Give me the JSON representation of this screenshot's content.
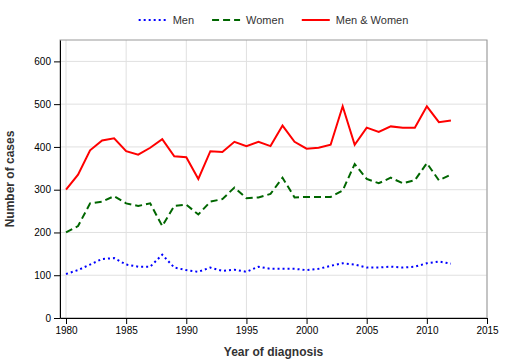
{
  "chart_data": {
    "type": "line",
    "x": [
      1980,
      1981,
      1982,
      1983,
      1984,
      1985,
      1986,
      1987,
      1988,
      1989,
      1990,
      1991,
      1992,
      1993,
      1994,
      1995,
      1996,
      1997,
      1998,
      1999,
      2000,
      2001,
      2002,
      2003,
      2004,
      2005,
      2006,
      2007,
      2008,
      2009,
      2010,
      2011,
      2012
    ],
    "series": [
      {
        "name": "Men",
        "color": "#0000ff",
        "line_style": "dotted",
        "values": [
          103,
          112,
          125,
          138,
          140,
          125,
          120,
          120,
          148,
          118,
          112,
          108,
          118,
          110,
          113,
          108,
          120,
          115,
          115,
          115,
          112,
          115,
          122,
          128,
          125,
          118,
          118,
          120,
          118,
          120,
          128,
          132,
          127
        ]
      },
      {
        "name": "Women",
        "color": "#006600",
        "line_style": "dashed",
        "values": [
          200,
          215,
          268,
          272,
          285,
          268,
          262,
          268,
          215,
          262,
          265,
          242,
          272,
          278,
          305,
          280,
          282,
          290,
          328,
          282,
          283,
          283,
          283,
          298,
          360,
          325,
          315,
          328,
          315,
          322,
          362,
          322,
          335
        ]
      },
      {
        "name": "Men & Women",
        "color": "#ff0000",
        "line_style": "solid",
        "values": [
          300,
          335,
          392,
          415,
          420,
          390,
          382,
          398,
          418,
          378,
          376,
          325,
          390,
          388,
          412,
          402,
          412,
          402,
          450,
          412,
          396,
          398,
          405,
          495,
          405,
          445,
          435,
          448,
          445,
          445,
          495,
          458,
          462
        ]
      }
    ],
    "xlabel": "Year of diagnosis",
    "ylabel": "Number of cases",
    "xlim": [
      1979.5,
      2015
    ],
    "ylim": [
      0,
      650
    ],
    "xticks": [
      1980,
      1985,
      1990,
      1995,
      2000,
      2005,
      2010,
      2015
    ],
    "yticks": [
      0,
      100,
      200,
      300,
      400,
      500,
      600
    ],
    "grid": true,
    "legend": "top"
  }
}
